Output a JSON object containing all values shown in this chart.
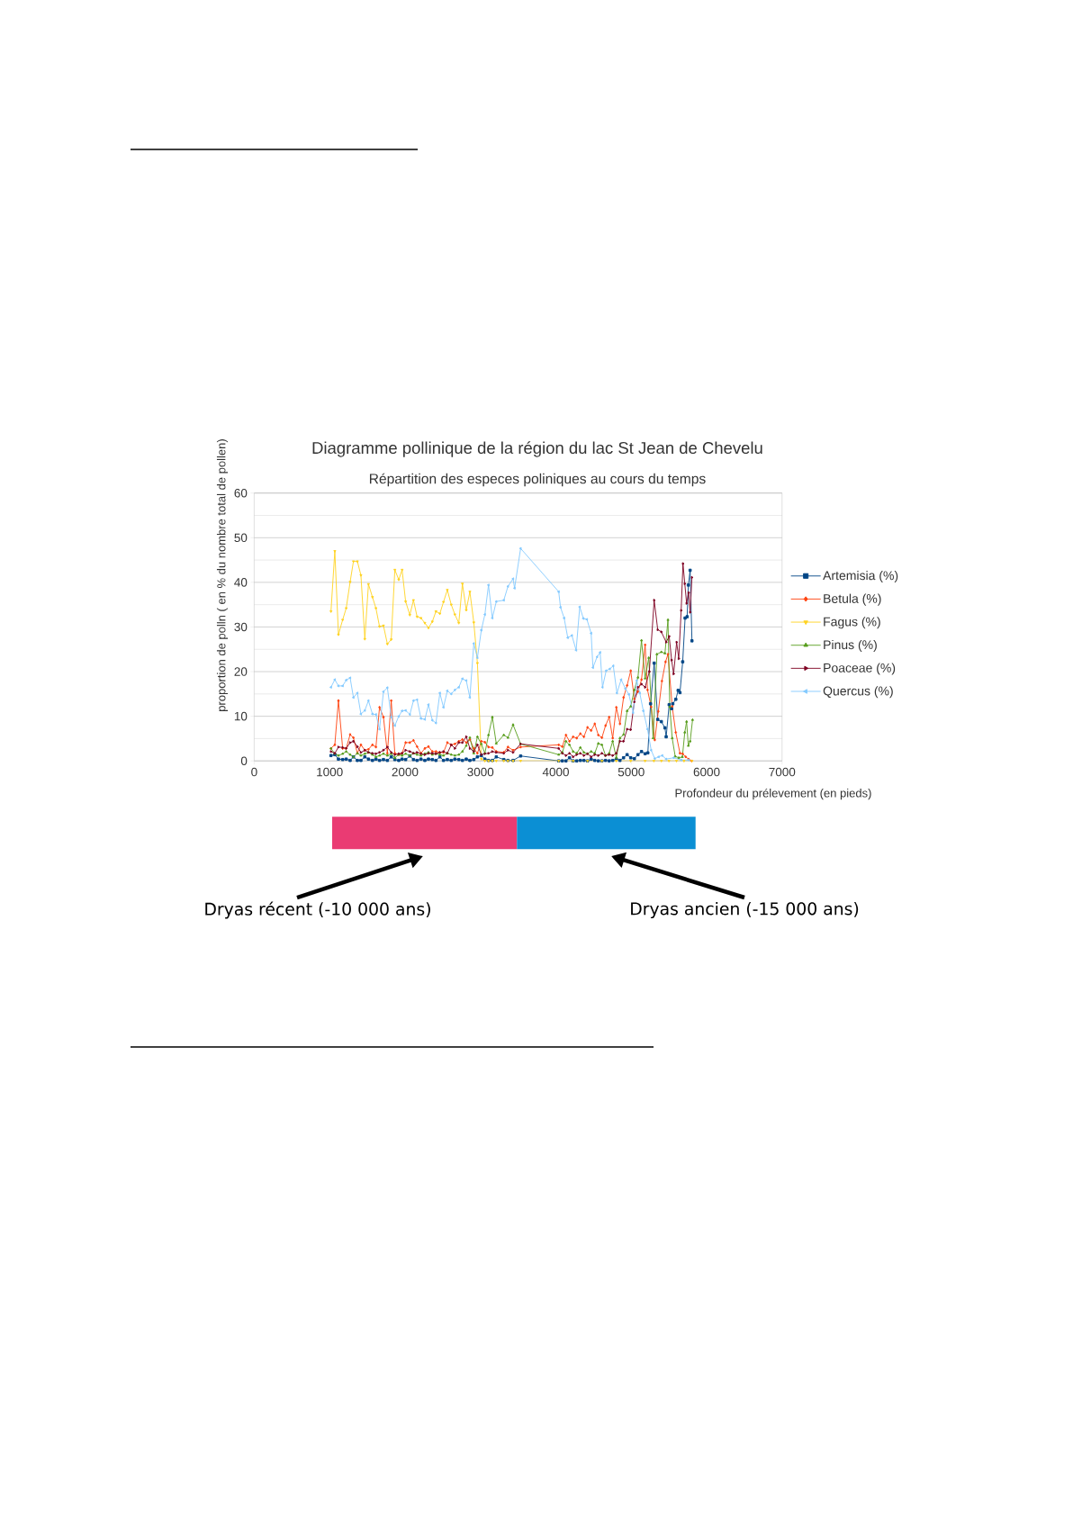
{
  "chart_data": {
    "type": "line",
    "title": "Diagramme pollinique de la région du lac St Jean de Chevelu",
    "subtitle": "Répartition des especes poliniques au cours du temps",
    "xlabel": "Profondeur du prélevement (en pieds)",
    "ylabel": "proportion de polln ( en % du nombre total de pollen)",
    "xlim": [
      0,
      7000
    ],
    "ylim": [
      0,
      60
    ],
    "xticks": [
      0,
      1000,
      2000,
      3000,
      4000,
      5000,
      6000,
      7000
    ],
    "yticks": [
      0,
      10,
      20,
      30,
      40,
      50,
      60
    ],
    "grid": "y",
    "legend": "right",
    "series": [
      {
        "name": "Artemisia (%)",
        "color": "#004586",
        "marker": "square",
        "x": [
          1018,
          1069,
          1117,
          1173,
          1220,
          1272,
          1316,
          1368,
          1415,
          1467,
          1515,
          1568,
          1614,
          1662,
          1714,
          1766,
          1817,
          1865,
          1917,
          1961,
          2008,
          2064,
          2112,
          2160,
          2211,
          2263,
          2311,
          2362,
          2410,
          2462,
          2510,
          2561,
          2613,
          2661,
          2713,
          2761,
          2812,
          2860,
          2912,
          2960,
          3012,
          3059,
          3107,
          3158,
          3210,
          3310,
          3365,
          3433,
          3533,
          4038,
          4086,
          4134,
          4181,
          4229,
          4277,
          4325,
          4372,
          4420,
          4468,
          4516,
          4563,
          4611,
          4659,
          4707,
          4754,
          4802,
          4850,
          4898,
          4945,
          4993,
          5041,
          5089,
          5136,
          5184,
          5220,
          5256,
          5304,
          5351,
          5399,
          5447,
          5463,
          5503,
          5535,
          5551,
          5591,
          5622,
          5646,
          5682,
          5714,
          5741,
          5757,
          5781,
          5805
        ],
        "values": [
          1.2,
          1.4,
          0.4,
          0.3,
          0.4,
          0.1,
          0.9,
          0.1,
          0.1,
          0.9,
          0.4,
          0.1,
          0.4,
          0.1,
          0.3,
          0.1,
          0.9,
          0.3,
          0.1,
          0.4,
          0.3,
          1.1,
          0.3,
          0.1,
          0.4,
          0.1,
          0.4,
          0.3,
          0.1,
          0.9,
          0.1,
          0.3,
          0.1,
          0.4,
          0.3,
          0.1,
          0.4,
          0.1,
          0.3,
          0.9,
          1.2,
          0.4,
          0.1,
          0.1,
          0.9,
          0.3,
          0.1,
          0.1,
          1.1,
          0,
          0,
          0,
          0.7,
          0,
          0,
          0.1,
          0.1,
          0,
          0.4,
          0.1,
          0,
          0,
          0.1,
          0,
          0.1,
          0.4,
          0.1,
          0.7,
          1.4,
          0.7,
          0.5,
          1.4,
          2.1,
          1.6,
          1.8,
          12.8,
          21.9,
          9.3,
          8.8,
          7.4,
          5.4,
          12.6,
          11.7,
          12.8,
          13.8,
          15.8,
          15.3,
          22.2,
          32.0,
          32.3,
          39.4,
          42.7,
          26.9
        ]
      },
      {
        "name": "Betula (%)",
        "color": "#ff420e",
        "marker": "diamond",
        "x": [
          1018,
          1069,
          1117,
          1173,
          1220,
          1272,
          1316,
          1368,
          1415,
          1467,
          1515,
          1568,
          1614,
          1662,
          1714,
          1766,
          1817,
          1865,
          1917,
          1961,
          2008,
          2064,
          2112,
          2160,
          2211,
          2263,
          2311,
          2362,
          2410,
          2462,
          2510,
          2561,
          2613,
          2661,
          2713,
          2761,
          2812,
          2860,
          2912,
          2960,
          3012,
          3059,
          3107,
          3158,
          3210,
          3310,
          3365,
          3433,
          3533,
          4038,
          4086,
          4134,
          4181,
          4229,
          4277,
          4325,
          4372,
          4420,
          4468,
          4516,
          4563,
          4611,
          4659,
          4707,
          4754,
          4802,
          4850,
          4898,
          4945,
          4993,
          5041,
          5089,
          5136,
          5184,
          5216,
          5264,
          5312,
          5359,
          5407,
          5455,
          5487,
          5543,
          5590,
          5646,
          5682,
          5722,
          5761,
          5801
        ],
        "values": [
          2.8,
          3.6,
          13.5,
          2.8,
          2.8,
          5.9,
          5.2,
          1.7,
          3.6,
          2.4,
          2.6,
          3.6,
          3.1,
          12.0,
          9.8,
          1.7,
          13.5,
          1.7,
          1.4,
          1.7,
          4.1,
          4.1,
          4.6,
          3.2,
          1.7,
          2.8,
          3.2,
          2.1,
          2.1,
          1.9,
          1.9,
          4.1,
          3.6,
          3.8,
          4.4,
          4.8,
          4.1,
          4.8,
          2.8,
          1.7,
          4.4,
          4.2,
          3.1,
          3.0,
          2.1,
          1.9,
          3.1,
          2.4,
          3.1,
          3.6,
          3.2,
          5.8,
          4.4,
          5.4,
          5.1,
          6.1,
          5.4,
          7.5,
          6.8,
          8.3,
          5.8,
          5.2,
          7.9,
          9.8,
          5.1,
          12.0,
          8.3,
          14.2,
          16.9,
          20.2,
          13.9,
          15.5,
          18.2,
          26.0,
          15.9,
          12.1,
          4.7,
          11.1,
          17.9,
          22.2,
          23.9,
          12.2,
          6.4,
          1.7,
          1.6,
          0.9,
          0.4,
          0.0
        ]
      },
      {
        "name": "Fagus (%)",
        "color": "#ffd320",
        "marker": "triangle-down",
        "x": [
          1018,
          1069,
          1117,
          1173,
          1220,
          1272,
          1316,
          1368,
          1415,
          1467,
          1515,
          1568,
          1614,
          1662,
          1714,
          1766,
          1817,
          1865,
          1917,
          1961,
          2008,
          2064,
          2112,
          2160,
          2211,
          2263,
          2311,
          2362,
          2410,
          2462,
          2510,
          2561,
          2613,
          2661,
          2713,
          2761,
          2812,
          2860,
          2912,
          2960,
          3012,
          3059,
          3107,
          3158,
          3210,
          3310,
          3365,
          3433,
          3533,
          4038,
          4229,
          4420,
          4611,
          4802,
          4993,
          5184,
          5300,
          5400,
          5500,
          5600,
          5700,
          5805
        ],
        "values": [
          33.5,
          47.0,
          28.3,
          31.6,
          34.2,
          40.1,
          44.7,
          44.7,
          41.6,
          27.3,
          39.6,
          36.7,
          34.2,
          30.1,
          30.3,
          26.2,
          27.2,
          42.8,
          40.6,
          42.8,
          35.7,
          32.7,
          36.0,
          32.3,
          32.0,
          30.9,
          29.8,
          31.2,
          33.5,
          33.0,
          35.6,
          38.3,
          35.0,
          32.8,
          30.9,
          39.7,
          33.8,
          37.9,
          31.0,
          21.9,
          0.4,
          0,
          0,
          0,
          0,
          0,
          0,
          0,
          0,
          0,
          0,
          0,
          0,
          0,
          0,
          0,
          0,
          0,
          0,
          0,
          0,
          0
        ]
      },
      {
        "name": "Pinus (%)",
        "color": "#579d1c",
        "marker": "triangle",
        "x": [
          1018,
          1069,
          1117,
          1173,
          1220,
          1272,
          1316,
          1368,
          1415,
          1467,
          1515,
          1568,
          1614,
          1662,
          1714,
          1766,
          1817,
          1865,
          1917,
          1961,
          2008,
          2064,
          2112,
          2160,
          2211,
          2263,
          2311,
          2362,
          2410,
          2462,
          2510,
          2561,
          2613,
          2661,
          2713,
          2761,
          2812,
          2860,
          2912,
          2960,
          3012,
          3059,
          3107,
          3158,
          3210,
          3310,
          3365,
          3433,
          3533,
          4038,
          4086,
          4134,
          4181,
          4229,
          4277,
          4325,
          4372,
          4420,
          4468,
          4516,
          4563,
          4611,
          4659,
          4707,
          4754,
          4802,
          4850,
          4898,
          4945,
          4993,
          5041,
          5089,
          5136,
          5184,
          5232,
          5290,
          5340,
          5399,
          5447,
          5487,
          5511,
          5543,
          5583,
          5630,
          5678,
          5710,
          5734,
          5757,
          5781,
          5813
        ],
        "values": [
          2.8,
          1.6,
          1.2,
          1.6,
          2.1,
          1.4,
          0.9,
          1.7,
          1.2,
          1.6,
          1.9,
          1.4,
          0.9,
          1.2,
          1.6,
          1.2,
          1.6,
          0.7,
          1.4,
          1.2,
          1.6,
          1.2,
          1.7,
          1.4,
          1.2,
          1.6,
          1.9,
          1.4,
          1.6,
          1.4,
          1.2,
          1.7,
          1.4,
          1.2,
          1.4,
          2.1,
          3.4,
          5.2,
          1.7,
          5.4,
          3.8,
          1.7,
          5.8,
          9.8,
          3.9,
          5.8,
          5.2,
          8.1,
          3.8,
          1.4,
          1.9,
          4.4,
          3.6,
          2.1,
          1.7,
          3.0,
          1.9,
          1.6,
          2.1,
          1.7,
          3.9,
          3.6,
          1.2,
          1.7,
          4.4,
          0.7,
          5.1,
          5.9,
          11.2,
          12.2,
          15.9,
          18.7,
          27.0,
          18.5,
          23.1,
          5.1,
          23.9,
          24.4,
          24.1,
          31.6,
          12.1,
          5.1,
          1.0,
          0.7,
          0.9,
          6.4,
          8.8,
          3.4,
          4.4,
          9.2
        ]
      },
      {
        "name": "Poaceae (%)",
        "color": "#7e0021",
        "marker": "triangle-right",
        "x": [
          1018,
          1069,
          1117,
          1173,
          1220,
          1272,
          1316,
          1368,
          1415,
          1467,
          1515,
          1568,
          1614,
          1662,
          1714,
          1766,
          1817,
          1865,
          1917,
          1961,
          2008,
          2064,
          2112,
          2160,
          2211,
          2263,
          2311,
          2362,
          2410,
          2462,
          2510,
          2561,
          2613,
          2661,
          2713,
          2761,
          2812,
          2860,
          2912,
          2960,
          3012,
          3059,
          3107,
          3158,
          3210,
          3310,
          3365,
          3433,
          3533,
          4038,
          4086,
          4134,
          4181,
          4229,
          4277,
          4325,
          4372,
          4420,
          4468,
          4516,
          4563,
          4611,
          4659,
          4707,
          4754,
          4802,
          4850,
          4898,
          4945,
          4993,
          5041,
          5089,
          5136,
          5184,
          5240,
          5304,
          5351,
          5399,
          5463,
          5503,
          5535,
          5562,
          5602,
          5630,
          5662,
          5686,
          5710,
          5734,
          5761,
          5781,
          5805
        ],
        "values": [
          2.1,
          1.7,
          3.1,
          3.0,
          2.8,
          4.1,
          4.4,
          3.2,
          1.9,
          2.4,
          1.9,
          1.7,
          1.6,
          1.9,
          2.4,
          3.1,
          1.9,
          1.4,
          1.6,
          1.7,
          2.4,
          2.1,
          1.7,
          1.9,
          1.6,
          1.4,
          1.7,
          1.7,
          1.6,
          1.9,
          2.1,
          1.7,
          3.6,
          2.8,
          4.1,
          4.1,
          5.4,
          2.8,
          2.1,
          3.6,
          1.4,
          1.6,
          1.7,
          2.1,
          1.9,
          1.7,
          2.4,
          1.9,
          3.8,
          2.8,
          1.7,
          1.2,
          1.7,
          0.9,
          1.4,
          1.7,
          1.2,
          1.6,
          0.9,
          1.4,
          1.2,
          1.7,
          1.2,
          1.4,
          1.2,
          1.7,
          4.4,
          4.4,
          7.1,
          7.0,
          13.2,
          16.5,
          17.2,
          16.5,
          20.0,
          36.0,
          29.4,
          28.9,
          26.6,
          27.9,
          22.6,
          19.5,
          26.6,
          22.9,
          33.7,
          44.2,
          39.7,
          35.3,
          37.7,
          33.3,
          41.1
        ]
      },
      {
        "name": "Quercus (%)",
        "color": "#83caff",
        "marker": "triangle-left",
        "x": [
          1018,
          1069,
          1117,
          1173,
          1220,
          1272,
          1316,
          1368,
          1415,
          1467,
          1515,
          1568,
          1614,
          1662,
          1714,
          1766,
          1817,
          1865,
          1917,
          1961,
          2008,
          2064,
          2112,
          2160,
          2211,
          2263,
          2311,
          2362,
          2410,
          2462,
          2510,
          2561,
          2613,
          2661,
          2713,
          2761,
          2812,
          2860,
          2912,
          2960,
          3012,
          3059,
          3107,
          3158,
          3210,
          3310,
          3365,
          3433,
          3453,
          3533,
          4038,
          4062,
          4110,
          4158,
          4213,
          4269,
          4317,
          4365,
          4412,
          4468,
          4492,
          4547,
          4587,
          4619,
          4667,
          4715,
          4762,
          4810,
          4866,
          4922,
          4969,
          5025,
          5073,
          5113,
          5160,
          5216,
          5264,
          5312,
          5363,
          5411,
          5463,
          5562,
          5662,
          5761
        ],
        "values": [
          16.5,
          18.2,
          16.8,
          16.8,
          18.1,
          18.6,
          14.2,
          15.2,
          10.5,
          11.3,
          13.5,
          10.5,
          10.4,
          7.1,
          15.5,
          16.4,
          9.8,
          7.9,
          10.0,
          11.2,
          11.3,
          10.4,
          13.5,
          13.7,
          9.5,
          9.3,
          12.6,
          9.1,
          8.5,
          15.2,
          12.0,
          15.7,
          15.0,
          15.9,
          16.5,
          18.4,
          18.0,
          14.2,
          26.3,
          23.1,
          29.3,
          32.8,
          39.4,
          32.0,
          35.7,
          36.0,
          39.1,
          40.8,
          38.7,
          47.6,
          37.9,
          34.4,
          32.0,
          27.6,
          28.1,
          24.8,
          34.5,
          31.9,
          31.7,
          28.6,
          20.9,
          23.3,
          24.3,
          16.5,
          20.2,
          20.6,
          21.3,
          15.2,
          18.2,
          16.2,
          14.9,
          10.8,
          18.0,
          15.2,
          11.2,
          7.1,
          2.4,
          0.5,
          0.9,
          1.2,
          0.4,
          0.7,
          0.2,
          0.2
        ]
      }
    ],
    "annotations": [
      "Dryas récent (-10 000 ans)",
      "Dryas ancien (-15 000 ans)"
    ]
  }
}
